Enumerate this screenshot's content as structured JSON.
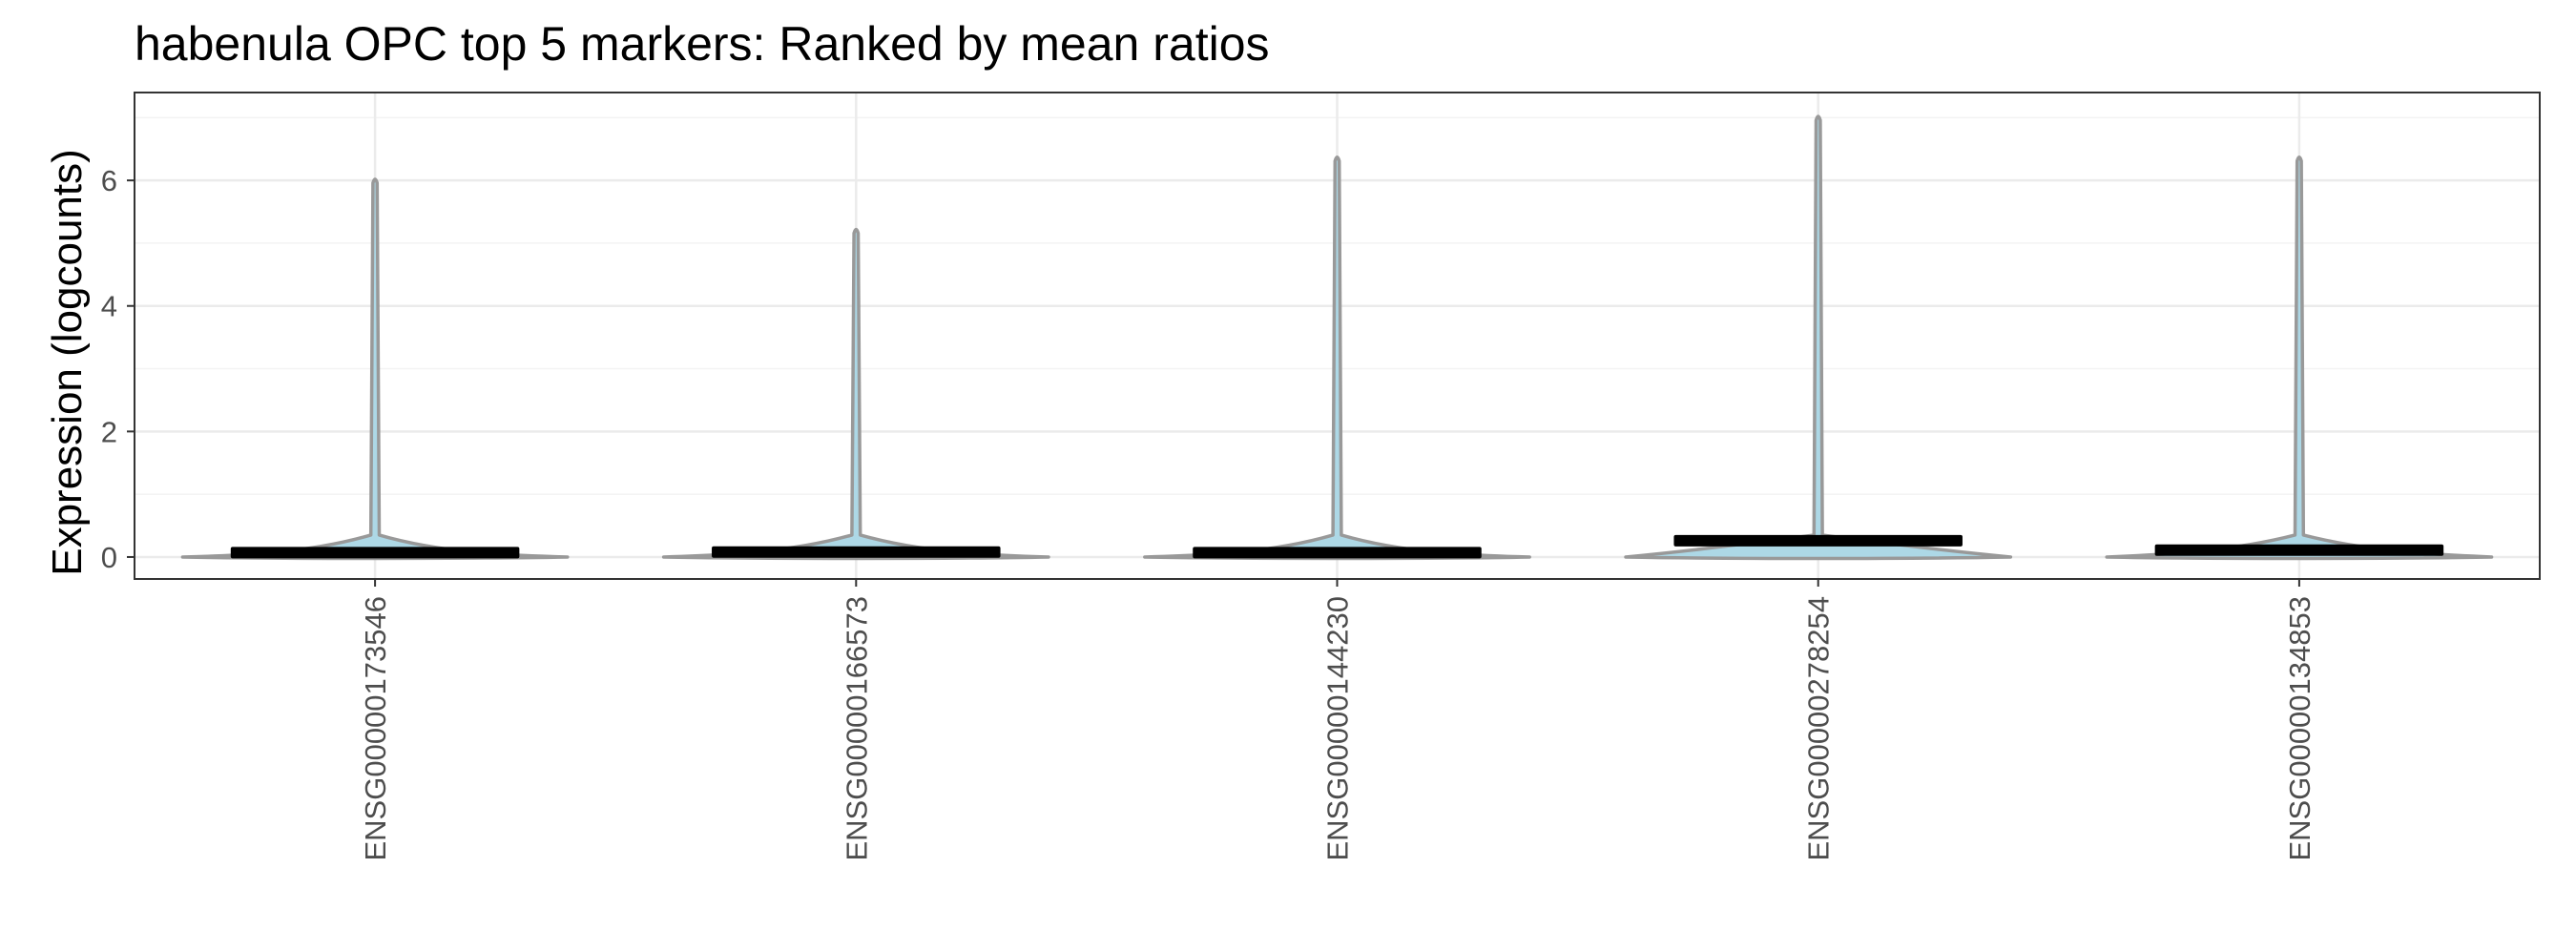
{
  "chart_data": {
    "type": "violin",
    "title": "habenula OPC top 5 markers: Ranked by mean ratios",
    "xlabel": "",
    "ylabel": "Expression (logcounts)",
    "ylim": [
      -0.35,
      7.4
    ],
    "yticks": [
      0,
      2,
      4,
      6
    ],
    "ytick_labels": [
      "0",
      "2",
      "4",
      "6"
    ],
    "grid": true,
    "legend": "none",
    "categories": [
      "ENSG00000173546",
      "ENSG00000166573",
      "ENSG00000144230",
      "ENSG00000278254",
      "ENSG00000134853"
    ],
    "series": [
      {
        "values": [
          {
            "max": 6.05,
            "mean": 0.07,
            "width": 0.8
          },
          {
            "max": 5.25,
            "mean": 0.08,
            "width": 0.8
          },
          {
            "max": 6.4,
            "mean": 0.07,
            "width": 0.8
          },
          {
            "max": 7.05,
            "mean": 0.26,
            "width": 0.8
          },
          {
            "max": 6.4,
            "mean": 0.11,
            "width": 0.8
          }
        ]
      }
    ],
    "colors": {
      "violin_fill": "#add8e6",
      "violin_outline": "#999999",
      "mean_bar": "#000000",
      "grid_major": "#ebebeb",
      "grid_minor": "#f3f3f3",
      "panel_border": "#333333",
      "tick_mark": "#333333",
      "tick_label": "#4d4d4d"
    }
  }
}
